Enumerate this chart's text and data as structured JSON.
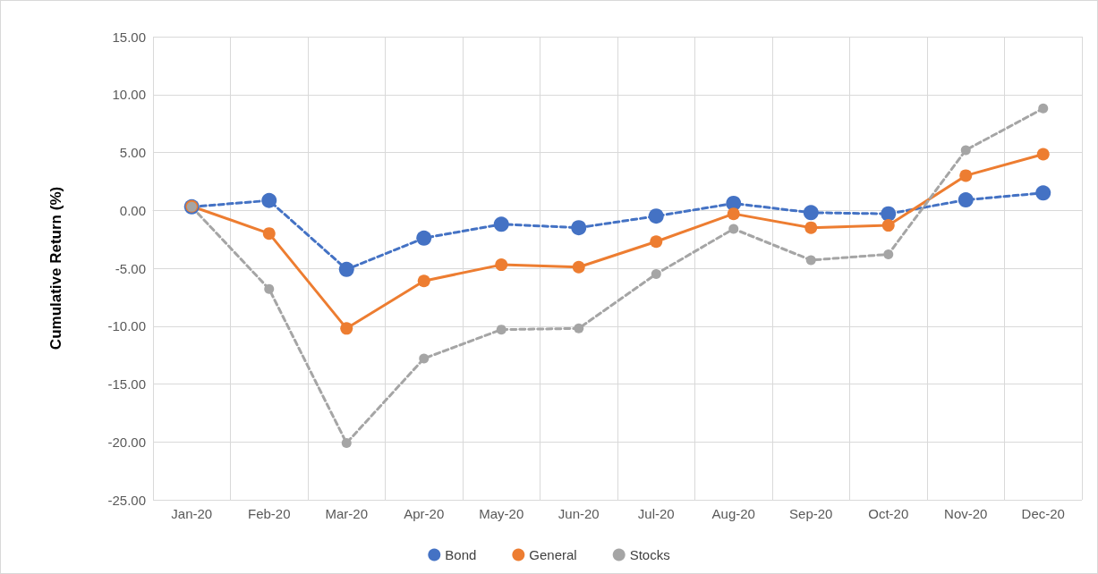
{
  "chart_data": {
    "type": "line",
    "ylabel": "Cumulative Return (%)",
    "categories": [
      "Jan-20",
      "Feb-20",
      "Mar-20",
      "Apr-20",
      "May-20",
      "Jun-20",
      "Jul-20",
      "Aug-20",
      "Sep-20",
      "Oct-20",
      "Nov-20",
      "Dec-20"
    ],
    "series": [
      {
        "name": "Bond",
        "color": "#4472c4",
        "line_style": "dashed",
        "values": [
          0.3,
          0.85,
          -5.1,
          -2.4,
          -1.2,
          -1.5,
          -0.5,
          0.6,
          -0.2,
          -0.3,
          0.9,
          1.5
        ]
      },
      {
        "name": "General",
        "color": "#ed7d31",
        "line_style": "solid",
        "values": [
          0.35,
          -2.0,
          -10.2,
          -6.1,
          -4.7,
          -4.9,
          -2.7,
          -0.3,
          -1.5,
          -1.3,
          3.0,
          4.85
        ]
      },
      {
        "name": "Stocks",
        "color": "#a5a5a5",
        "line_style": "dashed",
        "values": [
          0.3,
          -6.8,
          -20.1,
          -12.8,
          -10.3,
          -10.2,
          -5.5,
          -1.6,
          -4.3,
          -3.8,
          5.2,
          8.8
        ]
      }
    ],
    "ylim": [
      -25,
      15
    ],
    "yticks": [
      {
        "value": -25,
        "label": "-25.00"
      },
      {
        "value": -20,
        "label": "-20.00"
      },
      {
        "value": -15,
        "label": "-15.00"
      },
      {
        "value": -10,
        "label": "-10.00"
      },
      {
        "value": -5,
        "label": "-5.00"
      },
      {
        "value": 0,
        "label": "0.00"
      },
      {
        "value": 5,
        "label": "5.00"
      },
      {
        "value": 10,
        "label": "10.00"
      },
      {
        "value": 15,
        "label": "15.00"
      }
    ],
    "grid": true,
    "legend": "bottom",
    "marker": "circle"
  }
}
